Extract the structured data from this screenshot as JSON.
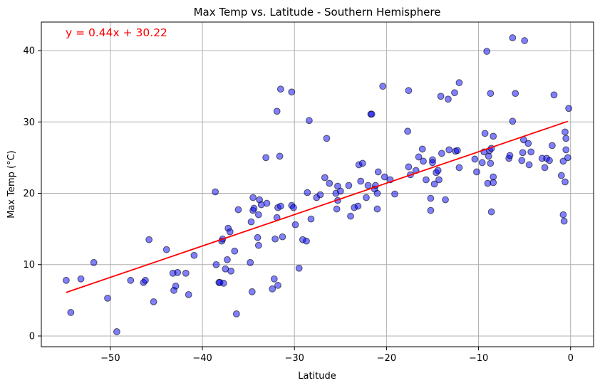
{
  "chart_data": {
    "type": "scatter",
    "title": "Max Temp vs. Latitude - Southern Hemisphere",
    "xlabel": "Latitude",
    "ylabel": "Max Temp (°C)",
    "xlim": [
      -57.5,
      2.5
    ],
    "ylim": [
      -1.5,
      44
    ],
    "xticks": [
      -50,
      -40,
      -30,
      -20,
      -10,
      0
    ],
    "yticks": [
      0,
      10,
      20,
      30,
      40
    ],
    "grid": true,
    "equation": "y = 0.44x + 30.22",
    "regression": {
      "slope": 0.44,
      "intercept": 30.22,
      "x_range": [
        -54.8,
        -0.3
      ]
    },
    "points": [
      [
        -54.8,
        7.8
      ],
      [
        -54.3,
        3.3
      ],
      [
        -53.2,
        8.0
      ],
      [
        -51.8,
        10.3
      ],
      [
        -50.3,
        5.3
      ],
      [
        -49.3,
        0.6
      ],
      [
        -47.8,
        7.8
      ],
      [
        -46.4,
        7.5
      ],
      [
        -46.2,
        7.8
      ],
      [
        -45.8,
        13.5
      ],
      [
        -45.3,
        4.8
      ],
      [
        -43.9,
        12.1
      ],
      [
        -43.2,
        8.8
      ],
      [
        -43.1,
        6.4
      ],
      [
        -42.9,
        7.0
      ],
      [
        -42.7,
        8.9
      ],
      [
        -41.8,
        8.8
      ],
      [
        -41.5,
        5.8
      ],
      [
        -40.9,
        11.3
      ],
      [
        -38.6,
        20.2
      ],
      [
        -38.5,
        10.0
      ],
      [
        -38.2,
        7.5
      ],
      [
        -38.1,
        7.5
      ],
      [
        -37.9,
        13.3
      ],
      [
        -37.8,
        13.6
      ],
      [
        -37.7,
        7.4
      ],
      [
        -37.5,
        9.4
      ],
      [
        -37.3,
        10.7
      ],
      [
        -37.2,
        15.1
      ],
      [
        -37.0,
        14.6
      ],
      [
        -36.9,
        9.1
      ],
      [
        -36.5,
        11.9
      ],
      [
        -36.3,
        3.1
      ],
      [
        -36.1,
        17.7
      ],
      [
        -34.8,
        10.3
      ],
      [
        -34.7,
        16.0
      ],
      [
        -34.6,
        6.2
      ],
      [
        -34.5,
        17.6
      ],
      [
        -34.5,
        19.4
      ],
      [
        -34.4,
        17.9
      ],
      [
        -34.0,
        13.8
      ],
      [
        -33.9,
        12.7
      ],
      [
        -33.9,
        17.0
      ],
      [
        -33.8,
        19.1
      ],
      [
        -33.6,
        18.4
      ],
      [
        -33.1,
        25.0
      ],
      [
        -33.0,
        18.6
      ],
      [
        -32.4,
        6.6
      ],
      [
        -32.2,
        8.0
      ],
      [
        -32.1,
        13.6
      ],
      [
        -31.9,
        31.5
      ],
      [
        -31.9,
        16.6
      ],
      [
        -31.8,
        7.1
      ],
      [
        -31.8,
        18.0
      ],
      [
        -31.6,
        25.2
      ],
      [
        -31.5,
        34.6
      ],
      [
        -31.5,
        18.2
      ],
      [
        -31.3,
        13.9
      ],
      [
        -30.3,
        34.2
      ],
      [
        -30.3,
        18.3
      ],
      [
        -30.1,
        18.0
      ],
      [
        -29.9,
        15.6
      ],
      [
        -29.5,
        9.5
      ],
      [
        -29.1,
        13.5
      ],
      [
        -28.7,
        13.3
      ],
      [
        -28.6,
        20.1
      ],
      [
        -28.4,
        30.2
      ],
      [
        -28.2,
        16.4
      ],
      [
        -27.6,
        19.4
      ],
      [
        -27.2,
        19.8
      ],
      [
        -26.7,
        22.2
      ],
      [
        -26.5,
        27.7
      ],
      [
        -26.2,
        21.4
      ],
      [
        -25.5,
        20.0
      ],
      [
        -25.4,
        17.8
      ],
      [
        -25.3,
        21.0
      ],
      [
        -25.3,
        19.0
      ],
      [
        -25.0,
        20.3
      ],
      [
        -24.1,
        21.1
      ],
      [
        -23.9,
        16.8
      ],
      [
        -23.5,
        18.0
      ],
      [
        -23.1,
        18.2
      ],
      [
        -23.0,
        24.0
      ],
      [
        -22.8,
        21.7
      ],
      [
        -22.6,
        24.2
      ],
      [
        -22.2,
        19.4
      ],
      [
        -22.0,
        21.1
      ],
      [
        -21.7,
        31.1
      ],
      [
        -21.6,
        31.1
      ],
      [
        -21.3,
        20.6
      ],
      [
        -21.2,
        21.1
      ],
      [
        -21.0,
        17.8
      ],
      [
        -21.0,
        20.0
      ],
      [
        -20.9,
        23.0
      ],
      [
        -20.2,
        22.3
      ],
      [
        -20.4,
        35.0
      ],
      [
        -19.6,
        21.9
      ],
      [
        -19.1,
        19.9
      ],
      [
        -17.7,
        28.7
      ],
      [
        -17.6,
        34.4
      ],
      [
        -17.6,
        23.7
      ],
      [
        -17.4,
        22.6
      ],
      [
        -16.8,
        23.2
      ],
      [
        -16.5,
        25.1
      ],
      [
        -16.1,
        26.2
      ],
      [
        -16.0,
        24.5
      ],
      [
        -15.7,
        21.9
      ],
      [
        -15.2,
        17.6
      ],
      [
        -15.2,
        19.3
      ],
      [
        -15.0,
        24.7
      ],
      [
        -15.0,
        24.3
      ],
      [
        -14.8,
        21.3
      ],
      [
        -14.6,
        22.9
      ],
      [
        -14.4,
        23.2
      ],
      [
        -14.3,
        21.9
      ],
      [
        -14.0,
        25.6
      ],
      [
        -14.1,
        33.6
      ],
      [
        -13.6,
        19.1
      ],
      [
        -13.3,
        33.2
      ],
      [
        -13.2,
        26.1
      ],
      [
        -12.6,
        34.1
      ],
      [
        -12.5,
        25.9
      ],
      [
        -12.3,
        26.0
      ],
      [
        -12.1,
        35.5
      ],
      [
        -12.1,
        23.6
      ],
      [
        -10.4,
        24.8
      ],
      [
        -10.2,
        23.0
      ],
      [
        -9.6,
        24.3
      ],
      [
        -9.4,
        25.8
      ],
      [
        -9.3,
        28.4
      ],
      [
        -9.1,
        39.9
      ],
      [
        -9.0,
        21.4
      ],
      [
        -8.9,
        25.2
      ],
      [
        -8.8,
        26.0
      ],
      [
        -8.7,
        34.0
      ],
      [
        -8.6,
        17.4
      ],
      [
        -8.7,
        24.2
      ],
      [
        -8.6,
        26.3
      ],
      [
        -8.4,
        22.3
      ],
      [
        -8.4,
        28.0
      ],
      [
        -8.4,
        21.5
      ],
      [
        -6.7,
        24.9
      ],
      [
        -6.6,
        25.3
      ],
      [
        -6.3,
        41.8
      ],
      [
        -6.3,
        30.1
      ],
      [
        -6.0,
        34.0
      ],
      [
        -5.3,
        24.6
      ],
      [
        -5.2,
        25.7
      ],
      [
        -5.1,
        27.5
      ],
      [
        -5.0,
        41.4
      ],
      [
        -4.6,
        27.0
      ],
      [
        -4.5,
        24.0
      ],
      [
        -4.3,
        25.8
      ],
      [
        -3.1,
        24.9
      ],
      [
        -2.8,
        23.6
      ],
      [
        -2.6,
        24.9
      ],
      [
        -2.3,
        24.6
      ],
      [
        -2.0,
        26.7
      ],
      [
        -1.8,
        33.8
      ],
      [
        -1.0,
        22.5
      ],
      [
        -0.8,
        17.0
      ],
      [
        -0.8,
        24.5
      ],
      [
        -0.7,
        16.1
      ],
      [
        -0.6,
        21.6
      ],
      [
        -0.6,
        28.6
      ],
      [
        -0.5,
        27.7
      ],
      [
        -0.5,
        26.1
      ],
      [
        -0.3,
        25.0
      ],
      [
        -0.2,
        31.9
      ]
    ]
  }
}
